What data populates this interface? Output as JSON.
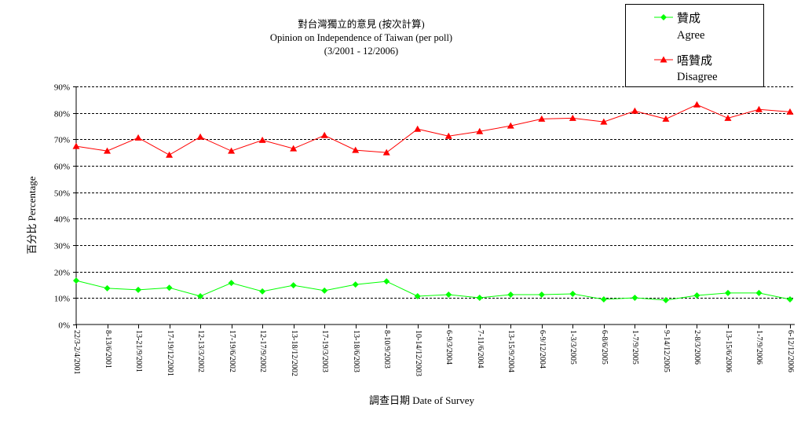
{
  "chart_data": {
    "type": "line",
    "title": "對台灣獨立的意見 (按次計算)",
    "subtitle": "Opinion on Independence of Taiwan (per poll)",
    "date_range": "(3/2001 - 12/2006)",
    "xlabel": "調查日期 Date of Survey",
    "ylabel": "百分比 Percentage",
    "ylim": [
      0,
      90
    ],
    "yticks": [
      0,
      10,
      20,
      30,
      40,
      50,
      60,
      70,
      80,
      90
    ],
    "ytick_labels": [
      "0%",
      "10%",
      "20%",
      "30%",
      "40%",
      "50%",
      "60%",
      "70%",
      "80%",
      "90%"
    ],
    "grid": true,
    "legend_position": "top-right",
    "categories": [
      "22/3-2/4/2001",
      "8-13/6/2001",
      "13-21/9/2001",
      "17-19/12/2001",
      "12-13/3/2002",
      "17-19/6/2002",
      "12-17/9/2002",
      "13-18/12/2002",
      "17-19/3/2003",
      "13-18/6/2003",
      "8-10/9/2003",
      "10-14/12/2003",
      "6-9/3/2004",
      "7-11/6/2004",
      "13-15/9/2004",
      "6-9/12/2004",
      "1-3/3/2005",
      "6-8/6/2005",
      "1-7/9/2005",
      "9-14/12/2005",
      "2-8/3/2006",
      "13-15/6/2006",
      "1-7/9/2006",
      "6-12/12/2006"
    ],
    "series": [
      {
        "name": "Agree",
        "name_zh": "贊成",
        "color": "#00ff00",
        "marker": "diamond",
        "values": [
          16.6,
          13.7,
          13.1,
          13.9,
          10.7,
          15.7,
          12.5,
          14.8,
          12.8,
          15.1,
          16.3,
          10.7,
          11.3,
          10.1,
          11.3,
          11.3,
          11.6,
          9.5,
          10.1,
          9.2,
          11.0,
          11.9,
          11.9,
          9.5
        ]
      },
      {
        "name": "Disagree",
        "name_zh": "唔贊成",
        "color": "#ff0000",
        "marker": "triangle",
        "values": [
          67.4,
          65.6,
          70.6,
          64.1,
          70.9,
          65.6,
          69.7,
          66.5,
          71.5,
          65.9,
          65.0,
          73.9,
          71.2,
          73.0,
          75.1,
          77.7,
          78.0,
          76.6,
          80.7,
          77.7,
          83.1,
          78.0,
          81.3,
          80.4
        ]
      }
    ]
  }
}
